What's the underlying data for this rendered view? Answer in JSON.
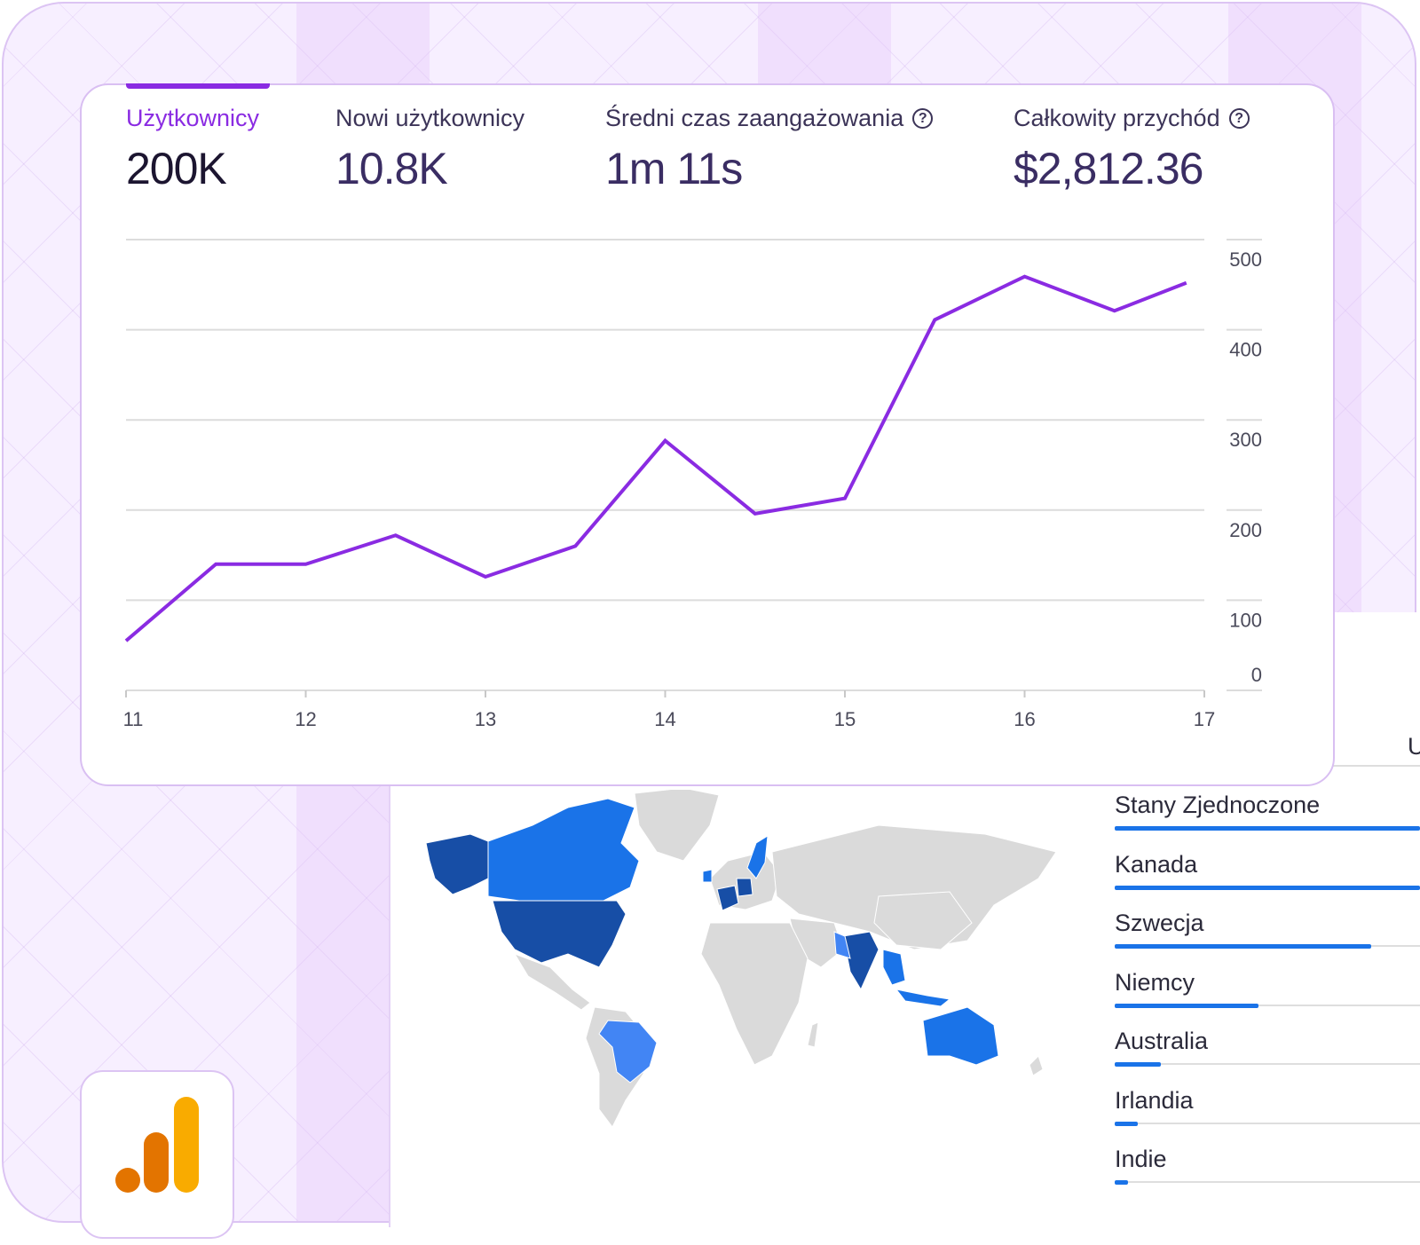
{
  "metrics": [
    {
      "label": "Użytkownicy",
      "value": "200K",
      "active": true,
      "help": false
    },
    {
      "label": "Nowi użytkownicy",
      "value": "10.8K",
      "active": false,
      "help": false
    },
    {
      "label": "Średni czas zaangażowania",
      "value": "1m 11s",
      "active": false,
      "help": true
    },
    {
      "label": "Całkowity przychód",
      "value": "$2,812.36",
      "active": false,
      "help": true
    }
  ],
  "help_icon_glyph": "?",
  "chart_data": {
    "type": "line",
    "x": [
      11,
      11.5,
      12,
      12.5,
      13,
      13.5,
      14,
      14.5,
      15,
      15.5,
      16,
      16.5,
      16.9
    ],
    "x_ticks": [
      "11",
      "12",
      "13",
      "14",
      "15",
      "16",
      "17"
    ],
    "y_ticks": [
      "0",
      "100",
      "200",
      "300",
      "400",
      "500"
    ],
    "ylim": [
      0,
      500
    ],
    "series": [
      {
        "values": [
          55,
          140,
          140,
          172,
          126,
          160,
          277,
          196,
          213,
          411,
          459,
          421,
          452
        ],
        "color": "#8a2be2"
      }
    ],
    "grid": true
  },
  "countries": [
    {
      "name": "Stany Zjednoczone",
      "share": 1.0
    },
    {
      "name": "Kanada",
      "share": 1.0
    },
    {
      "name": "Szwecja",
      "share": 0.84
    },
    {
      "name": "Niemcy",
      "share": 0.47
    },
    {
      "name": "Australia",
      "share": 0.15
    },
    {
      "name": "Irlandia",
      "share": 0.075
    },
    {
      "name": "Indie",
      "share": 0.045
    }
  ],
  "corner_letter": "U",
  "colors": {
    "accent": "#8a2be2",
    "map_dark": "#174ea6",
    "map_mid": "#1a73e8",
    "map_light": "#4285f4",
    "map_grey": "#dadada"
  }
}
